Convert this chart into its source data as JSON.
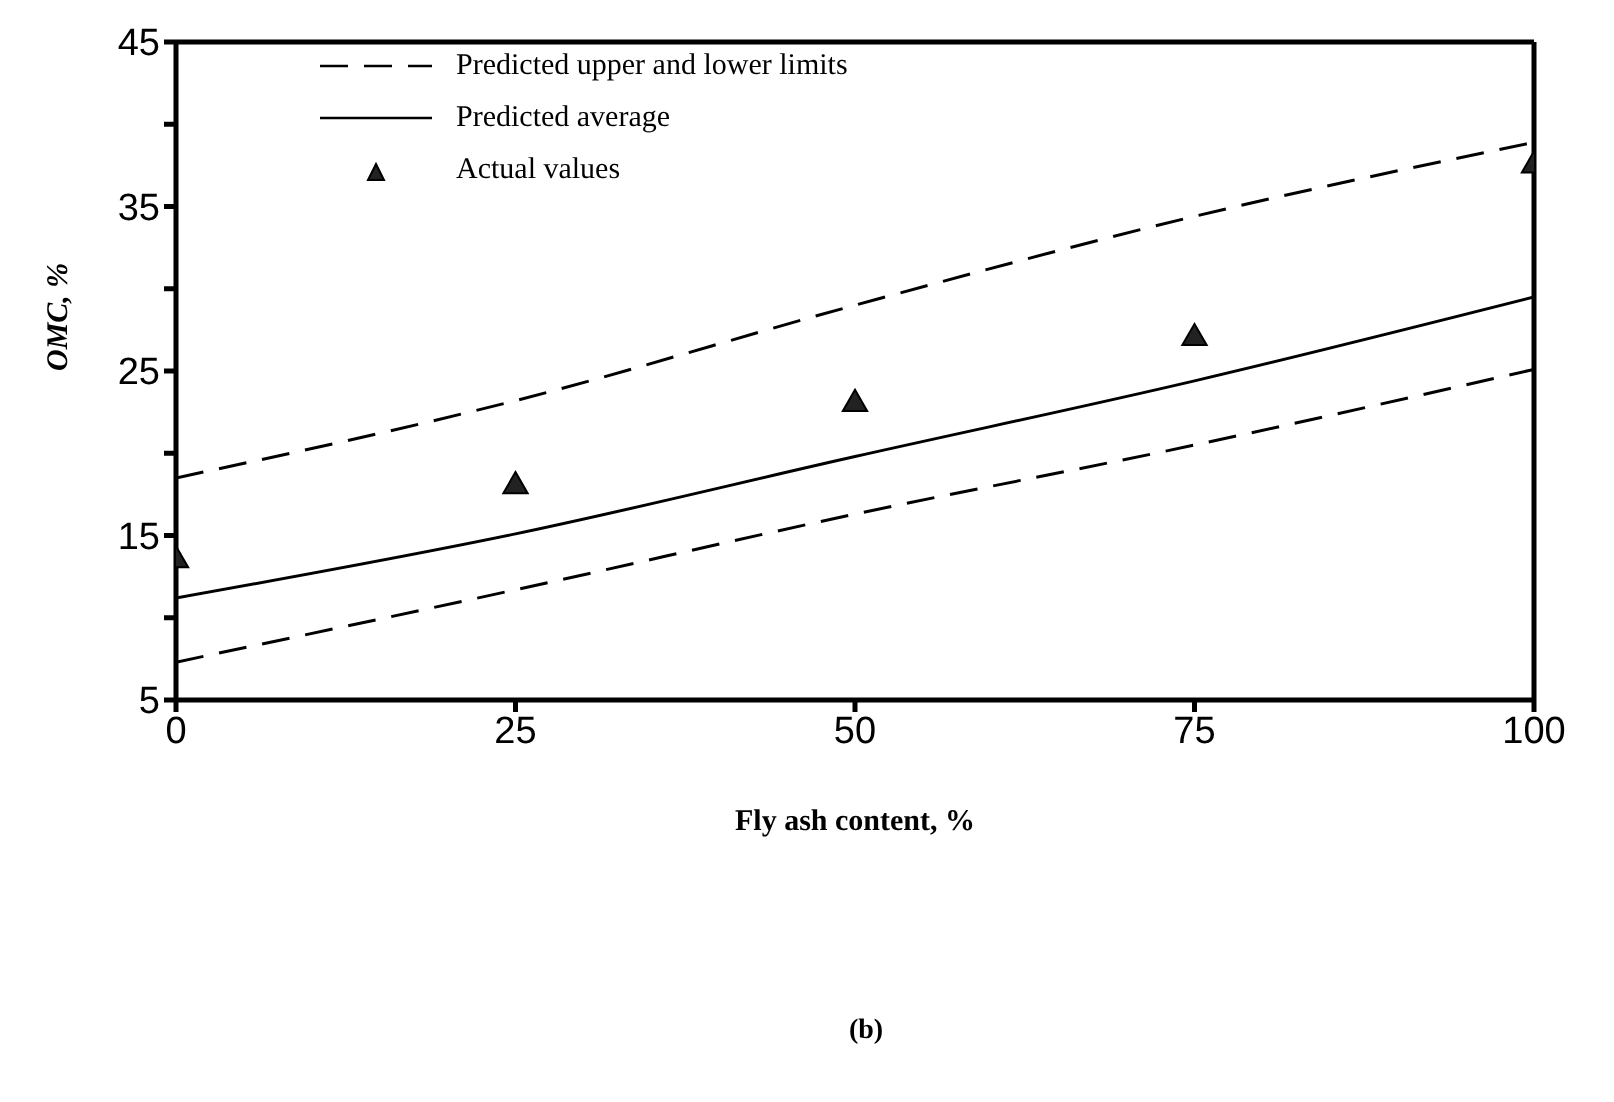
{
  "chart_data": {
    "type": "line",
    "xlabel": "Fly ash content, %",
    "ylabel": "OMC, %",
    "annotations": [
      "(b)"
    ],
    "xlim": [
      0,
      100
    ],
    "xticks": [
      0,
      25,
      50,
      75,
      100
    ],
    "ylim": [
      5,
      45
    ],
    "yticks": [
      5,
      {
        "value": 10,
        "label": null
      },
      15,
      {
        "value": 20,
        "label": null
      },
      25,
      {
        "value": 30,
        "label": null
      },
      35,
      {
        "value": 40,
        "label": null
      },
      45
    ],
    "grid": false,
    "legend": "top left",
    "series": [
      {
        "name": "Predicted upper and lower limits",
        "line_style": "dashed",
        "marker": "none",
        "color": "#000000",
        "x": [
          0,
          25,
          50,
          75,
          100
        ],
        "values": [
          18.5,
          23.2,
          29.0,
          34.4,
          38.9
        ]
      },
      {
        "name": "Predicted average",
        "line_style": "solid",
        "marker": "none",
        "color": "#000000",
        "x": [
          0,
          25,
          50,
          75,
          100
        ],
        "values": [
          11.2,
          15.1,
          19.8,
          24.4,
          29.5
        ]
      },
      {
        "name": "Actual values",
        "type": "scatter",
        "marker": "triangle",
        "color": "#222222",
        "x": [
          0,
          25,
          50,
          75,
          100
        ],
        "values": [
          13.5,
          18,
          23,
          27,
          37.5
        ]
      },
      {
        "line_style": "dashed",
        "marker": "none",
        "color": "#000000",
        "x": [
          0,
          25,
          50,
          75,
          100
        ],
        "values": [
          7.3,
          11.7,
          16.3,
          20.5,
          25.1
        ]
      }
    ]
  }
}
